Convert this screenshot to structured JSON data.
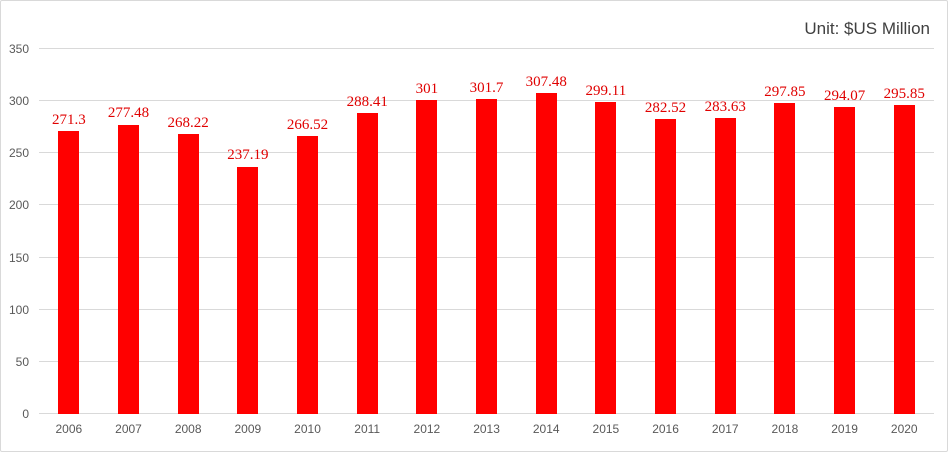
{
  "header": {
    "unit_label": "Unit: $US Million"
  },
  "colors": {
    "bar": "#ff0000",
    "data_label": "#e00000",
    "gridline": "#d9d9d9",
    "axis_text": "#595959",
    "unit_text": "#404040",
    "frame_border": "#d9d9d9",
    "background": "#ffffff"
  },
  "chart_data": {
    "type": "bar",
    "title": "",
    "unit": "Unit: $US Million",
    "categories": [
      "2006",
      "2007",
      "2008",
      "2009",
      "2010",
      "2011",
      "2012",
      "2013",
      "2014",
      "2015",
      "2016",
      "2017",
      "2018",
      "2019",
      "2020"
    ],
    "values": [
      271.3,
      277.48,
      268.22,
      237.19,
      266.52,
      288.41,
      301,
      301.7,
      307.48,
      299.11,
      282.52,
      283.63,
      297.85,
      294.07,
      295.85
    ],
    "data_labels": [
      "271.3",
      "277.48",
      "268.22",
      "237.19",
      "266.52",
      "288.41",
      "301",
      "301.7",
      "307.48",
      "299.11",
      "282.52",
      "283.63",
      "297.85",
      "294.07",
      "295.85"
    ],
    "xlabel": "",
    "ylabel": "",
    "ylim": [
      0,
      350
    ],
    "yticks": [
      0,
      50,
      100,
      150,
      200,
      250,
      300,
      350
    ],
    "grid": true,
    "legend": false,
    "bar_color": "#ff0000",
    "label_position": "above-bar"
  }
}
